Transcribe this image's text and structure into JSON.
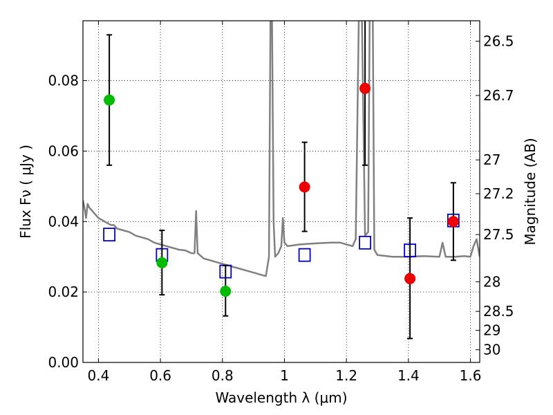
{
  "chart_data": {
    "type": "scatter",
    "title": "",
    "xlabel": "Wavelength  λ (μm)",
    "ylabel": "Flux  Fν  ( μJy )",
    "ylabel_right": "Magnitude (AB)",
    "xlim": [
      0.35,
      1.63
    ],
    "ylim": [
      0.0,
      0.097
    ],
    "x_ticks": [
      0.4,
      0.6,
      0.8,
      1.0,
      1.2,
      1.4,
      1.6
    ],
    "x_tick_labels": [
      "0.4",
      "0.6",
      "0.8",
      "1",
      "1.2",
      "1.4",
      "1.6"
    ],
    "y_ticks": [
      0.0,
      0.02,
      0.04,
      0.06,
      0.08
    ],
    "y_tick_labels": [
      "0.00",
      "0.02",
      "0.04",
      "0.06",
      "0.08"
    ],
    "right_ticks": [
      {
        "label": "26.5",
        "flux": 0.0912
      },
      {
        "label": "26.7",
        "flux": 0.0758
      },
      {
        "label": "27",
        "flux": 0.0575
      },
      {
        "label": "27.2",
        "flux": 0.0479
      },
      {
        "label": "27.5",
        "flux": 0.0363
      },
      {
        "label": "28",
        "flux": 0.0229
      },
      {
        "label": "28.5",
        "flux": 0.0145
      },
      {
        "label": "29",
        "flux": 0.0091
      },
      {
        "label": "30",
        "flux": 0.0036
      }
    ],
    "grid": true,
    "series": [
      {
        "kind": "line",
        "color": "#808080",
        "points": [
          [
            0.35,
            0.046
          ],
          [
            0.355,
            0.044
          ],
          [
            0.36,
            0.041
          ],
          [
            0.365,
            0.045
          ],
          [
            0.37,
            0.044
          ],
          [
            0.38,
            0.043
          ],
          [
            0.39,
            0.042
          ],
          [
            0.4,
            0.041
          ],
          [
            0.41,
            0.0405
          ],
          [
            0.42,
            0.04
          ],
          [
            0.43,
            0.0395
          ],
          [
            0.44,
            0.039
          ],
          [
            0.45,
            0.039
          ],
          [
            0.46,
            0.038
          ],
          [
            0.48,
            0.0375
          ],
          [
            0.5,
            0.037
          ],
          [
            0.52,
            0.036
          ],
          [
            0.54,
            0.0355
          ],
          [
            0.56,
            0.035
          ],
          [
            0.58,
            0.034
          ],
          [
            0.6,
            0.0335
          ],
          [
            0.62,
            0.033
          ],
          [
            0.64,
            0.0325
          ],
          [
            0.66,
            0.032
          ],
          [
            0.68,
            0.0318
          ],
          [
            0.7,
            0.031
          ],
          [
            0.71,
            0.031
          ],
          [
            0.715,
            0.043
          ],
          [
            0.72,
            0.031
          ],
          [
            0.74,
            0.0295
          ],
          [
            0.76,
            0.029
          ],
          [
            0.78,
            0.0285
          ],
          [
            0.8,
            0.028
          ],
          [
            0.82,
            0.0275
          ],
          [
            0.84,
            0.027
          ],
          [
            0.86,
            0.0265
          ],
          [
            0.88,
            0.026
          ],
          [
            0.9,
            0.0255
          ],
          [
            0.92,
            0.025
          ],
          [
            0.94,
            0.0245
          ],
          [
            0.95,
            0.03
          ],
          [
            0.955,
            0.098
          ],
          [
            0.96,
            0.098
          ],
          [
            0.965,
            0.04
          ],
          [
            0.97,
            0.03
          ],
          [
            0.98,
            0.031
          ],
          [
            0.99,
            0.033
          ],
          [
            0.995,
            0.041
          ],
          [
            1.0,
            0.034
          ],
          [
            1.01,
            0.033
          ],
          [
            1.05,
            0.0335
          ],
          [
            1.1,
            0.0338
          ],
          [
            1.15,
            0.034
          ],
          [
            1.18,
            0.034
          ],
          [
            1.2,
            0.0335
          ],
          [
            1.22,
            0.033
          ],
          [
            1.23,
            0.035
          ],
          [
            1.24,
            0.098
          ],
          [
            1.25,
            0.098
          ],
          [
            1.26,
            0.036
          ],
          [
            1.27,
            0.037
          ],
          [
            1.275,
            0.098
          ],
          [
            1.285,
            0.098
          ],
          [
            1.29,
            0.032
          ],
          [
            1.3,
            0.0305
          ],
          [
            1.35,
            0.03
          ],
          [
            1.4,
            0.03
          ],
          [
            1.45,
            0.0302
          ],
          [
            1.5,
            0.03
          ],
          [
            1.51,
            0.034
          ],
          [
            1.52,
            0.03
          ],
          [
            1.55,
            0.03
          ],
          [
            1.58,
            0.0302
          ],
          [
            1.6,
            0.03
          ],
          [
            1.61,
            0.033
          ],
          [
            1.62,
            0.035
          ],
          [
            1.63,
            0.03
          ]
        ]
      },
      {
        "kind": "markers",
        "marker": "square",
        "color": "#0000cc",
        "points": [
          [
            0.435,
            0.0363
          ],
          [
            0.605,
            0.0305
          ],
          [
            0.81,
            0.0258
          ],
          [
            1.065,
            0.0305
          ],
          [
            1.26,
            0.034
          ],
          [
            1.405,
            0.0318
          ],
          [
            1.545,
            0.0403
          ]
        ]
      },
      {
        "kind": "markers",
        "marker": "circle",
        "color": "#00bb00",
        "points": [
          {
            "x": 0.435,
            "y": 0.0745,
            "lo": 0.056,
            "hi": 0.093
          },
          {
            "x": 0.605,
            "y": 0.0283,
            "lo": 0.0192,
            "hi": 0.0375
          },
          {
            "x": 0.81,
            "y": 0.0202,
            "lo": 0.0132,
            "hi": 0.0275
          }
        ]
      },
      {
        "kind": "markers",
        "marker": "circle",
        "color": "#ee0000",
        "points": [
          {
            "x": 1.065,
            "y": 0.0498,
            "lo": 0.0372,
            "hi": 0.0625
          },
          {
            "x": 1.26,
            "y": 0.0778,
            "lo": 0.056,
            "hi": 0.098
          },
          {
            "x": 1.405,
            "y": 0.0238,
            "lo": 0.0068,
            "hi": 0.041
          },
          {
            "x": 1.545,
            "y": 0.04,
            "lo": 0.029,
            "hi": 0.051
          }
        ]
      }
    ]
  }
}
